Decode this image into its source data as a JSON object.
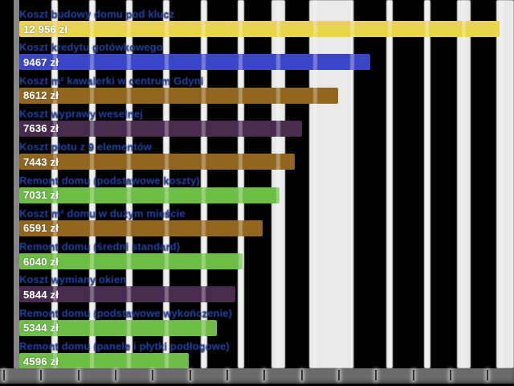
{
  "chart_data": {
    "type": "bar",
    "orientation": "horizontal",
    "title": "",
    "xlabel": "",
    "ylabel": "",
    "currency": "zł",
    "xlim": [
      0,
      13350
    ],
    "x_ticks": [
      0,
      1000,
      2000,
      3000,
      4000,
      5000,
      6000,
      7000,
      8000,
      9000,
      10000,
      11000,
      12000,
      13000
    ],
    "grid": true,
    "categories": [
      "Koszt budowy domu pod klucz",
      "Koszt kredytu gotówkowego",
      "Koszt m² kawalerki w centrum Gdyni",
      "Koszt wyprawy weselnej",
      "Koszt płotu z 9 elementów",
      "Remont domu (podstawowe koszty)",
      "Koszt m² domu w dużym mieście",
      "Remont domu (średni standard)",
      "Koszt wymiany okien",
      "Remont domu (podstawowe wykończenie)",
      "Remont domu (panele i płytki podłogowe)"
    ],
    "values": [
      12956,
      9467,
      8612,
      7636,
      7443,
      7031,
      6591,
      6040,
      5844,
      5344,
      4596
    ],
    "value_labels": [
      "12 956 zł",
      "9467 zł",
      "8612 zł",
      "7636 zł",
      "7443 zł",
      "7031 zł",
      "6591 zł",
      "6040 zł",
      "5844 zł",
      "5344 zł",
      "4596 zł"
    ],
    "bar_colors": [
      "#e8d44d",
      "#3a46c8",
      "#92661f",
      "#4a2b50",
      "#92661f",
      "#6dbe45",
      "#92661f",
      "#6dbe45",
      "#4a2b50",
      "#6dbe45",
      "#6dbe45"
    ],
    "category_label_color": "#2443a4",
    "value_text_color": "#ffffff",
    "background_color": "#000000",
    "gridline_color": "#e9e9e9",
    "axis_strip_color": "#6b6b6b"
  }
}
